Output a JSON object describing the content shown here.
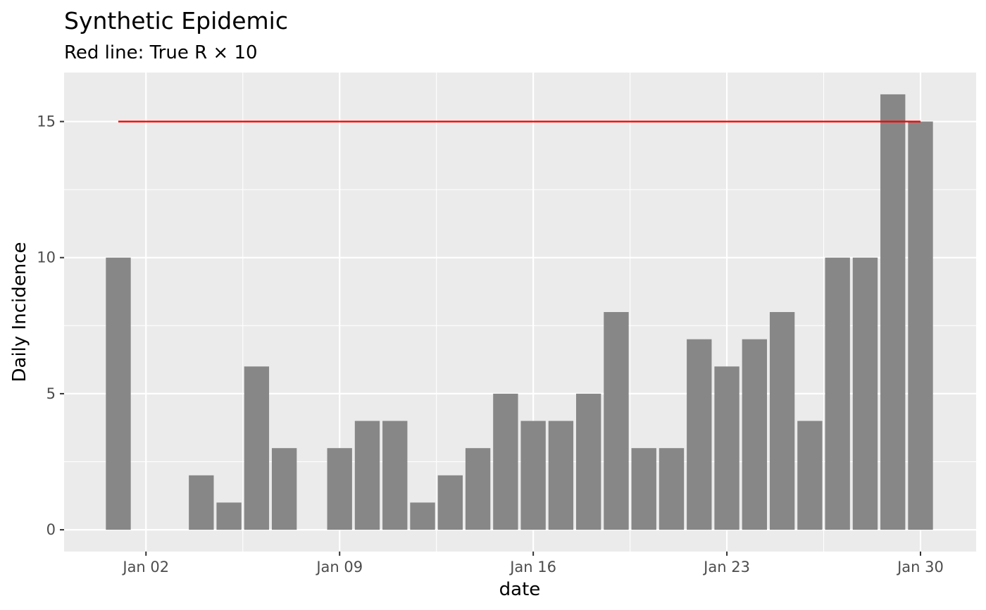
{
  "chart_data": {
    "type": "bar",
    "title": "Synthetic Epidemic",
    "subtitle": "Red line: True R × 10",
    "xlabel": "date",
    "ylabel": "Daily Incidence",
    "x": [
      "Jan 01",
      "Jan 02",
      "Jan 03",
      "Jan 04",
      "Jan 05",
      "Jan 06",
      "Jan 07",
      "Jan 08",
      "Jan 09",
      "Jan 10",
      "Jan 11",
      "Jan 12",
      "Jan 13",
      "Jan 14",
      "Jan 15",
      "Jan 16",
      "Jan 17",
      "Jan 18",
      "Jan 19",
      "Jan 20",
      "Jan 21",
      "Jan 22",
      "Jan 23",
      "Jan 24",
      "Jan 25",
      "Jan 26",
      "Jan 27",
      "Jan 28",
      "Jan 29",
      "Jan 30"
    ],
    "values": [
      10,
      0,
      0,
      2,
      1,
      6,
      3,
      0,
      3,
      4,
      4,
      1,
      2,
      3,
      5,
      4,
      4,
      5,
      8,
      3,
      3,
      7,
      6,
      7,
      8,
      4,
      10,
      10,
      16,
      15
    ],
    "reference_line": {
      "values": [
        15,
        15,
        15,
        15,
        15,
        15,
        15,
        15,
        15,
        15,
        15,
        15,
        15,
        15,
        15,
        15,
        15,
        15,
        15,
        15,
        15,
        15,
        15,
        15,
        15,
        15,
        15,
        15,
        15,
        15
      ],
      "color": "#ff0000"
    },
    "x_ticks": [
      "Jan 02",
      "Jan 09",
      "Jan 16",
      "Jan 23",
      "Jan 30"
    ],
    "y_ticks": [
      0,
      5,
      10,
      15
    ],
    "ylim": [
      -0.8,
      16.8
    ],
    "grid": true,
    "legend": "none",
    "colors": {
      "bar": "#878787",
      "panel": "#ebebeb",
      "grid": "#ffffff"
    }
  }
}
